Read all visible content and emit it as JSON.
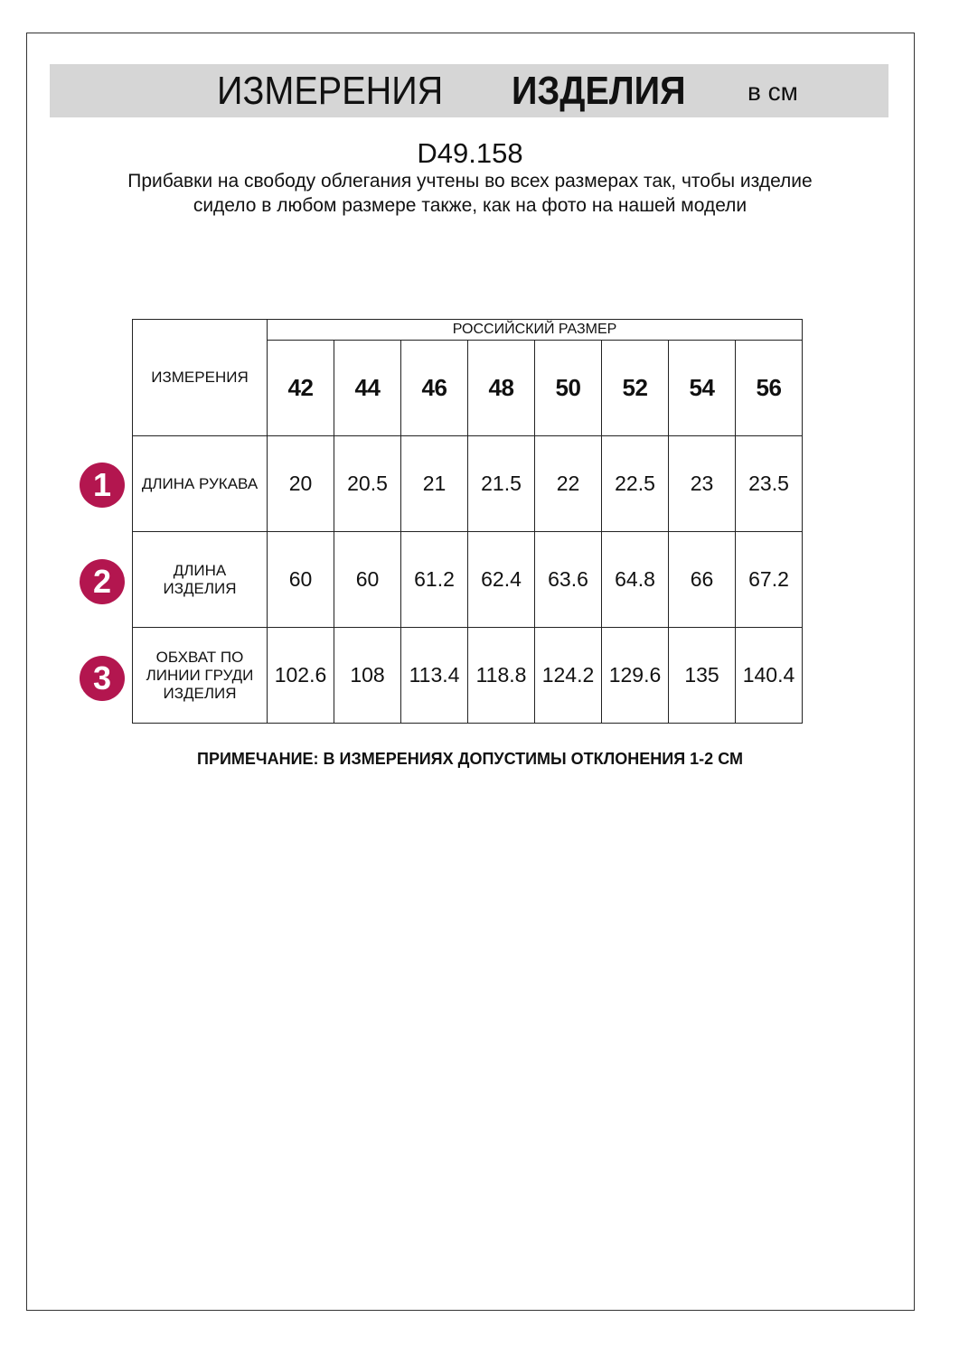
{
  "header": {
    "title_regular": "ИЗМЕРЕНИЯ",
    "title_bold": "ИЗДЕЛИЯ",
    "unit": "в см"
  },
  "article": "D49.158",
  "description": "Прибавки на свободу облегания учтены во всех размерах так, чтобы изделие сидело в любом размере также, как на фото на нашей модели",
  "table": {
    "measure_header": "ИЗМЕРЕНИЯ",
    "size_group_header": "РОССИЙСКИЙ РАЗМЕР",
    "sizes": [
      "42",
      "44",
      "46",
      "48",
      "50",
      "52",
      "54",
      "56"
    ],
    "rows": [
      {
        "badge": "1",
        "label": "ДЛИНА РУКАВА",
        "values": [
          "20",
          "20.5",
          "21",
          "21.5",
          "22",
          "22.5",
          "23",
          "23.5"
        ]
      },
      {
        "badge": "2",
        "label": "ДЛИНА ИЗДЕЛИЯ",
        "values": [
          "60",
          "60",
          "61.2",
          "62.4",
          "63.6",
          "64.8",
          "66",
          "67.2"
        ]
      },
      {
        "badge": "3",
        "label": "ОБХВАТ ПО ЛИНИИ ГРУДИ ИЗДЕЛИЯ",
        "values": [
          "102.6",
          "108",
          "113.4",
          "118.8",
          "124.2",
          "129.6",
          "135",
          "140.4"
        ]
      }
    ]
  },
  "note": "ПРИМЕЧАНИЕ: В ИЗМЕРЕНИЯХ ДОПУСТИМЫ ОТКЛОНЕНИЯ 1-2 СМ",
  "colors": {
    "badge": "#b3164f",
    "header_band": "#d6d6d6"
  }
}
